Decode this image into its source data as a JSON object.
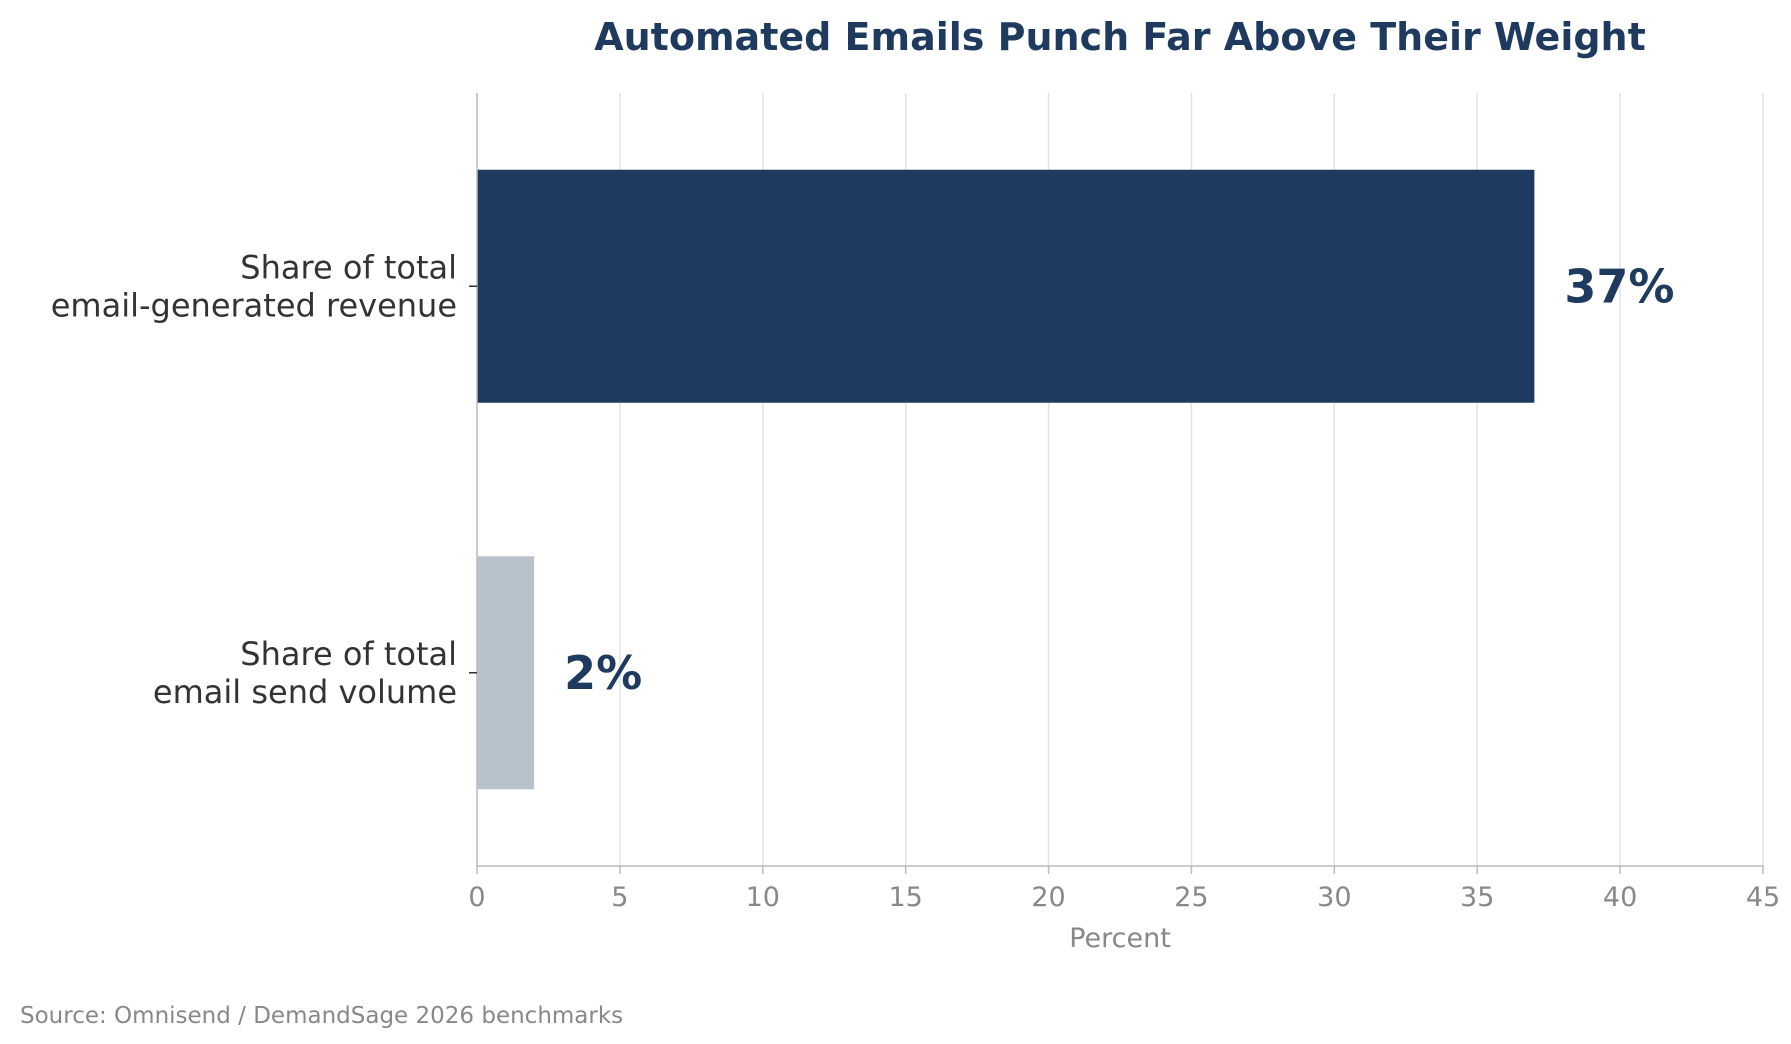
{
  "chart_data": {
    "type": "bar",
    "orientation": "horizontal",
    "title": "Automated Emails Punch Far Above Their Weight",
    "xlabel": "Percent",
    "ylabel": "",
    "xlim": [
      0,
      45
    ],
    "ticks": [
      0,
      5,
      10,
      15,
      20,
      25,
      30,
      35,
      40,
      45
    ],
    "grid": "vertical",
    "categories": [
      [
        "Share of total",
        "email-generated revenue"
      ],
      [
        "Share of total",
        "email send volume"
      ]
    ],
    "values": [
      37,
      2
    ],
    "value_labels": [
      "37%",
      "2%"
    ],
    "colors": [
      "#1e3a5f",
      "#b8c2cc"
    ],
    "label_color": "#1e3a5f",
    "source": "Source: Omnisend / DemandSage 2026 benchmarks"
  }
}
